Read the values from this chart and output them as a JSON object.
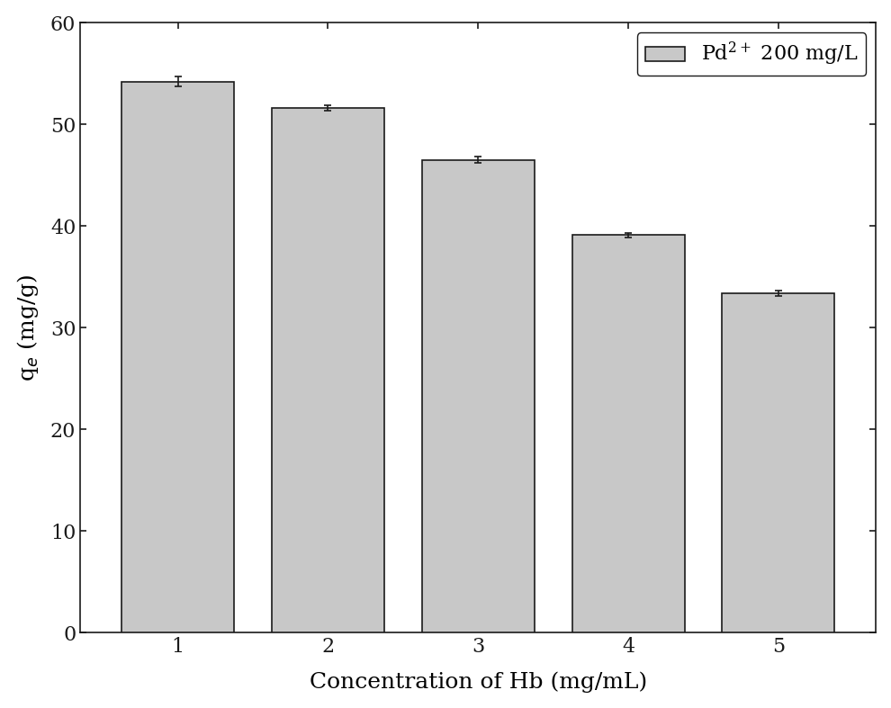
{
  "categories": [
    1,
    2,
    3,
    4,
    5
  ],
  "values": [
    54.2,
    51.6,
    46.5,
    39.1,
    33.4
  ],
  "errors": [
    0.5,
    0.3,
    0.3,
    0.25,
    0.25
  ],
  "bar_color": "#c8c8c8",
  "bar_edgecolor": "#1a1a1a",
  "xlabel": "Concentration of Hb (mg/mL)",
  "ylabel": "q$_e$ (mg/g)",
  "ylim": [
    0,
    60
  ],
  "yticks": [
    0,
    10,
    20,
    30,
    40,
    50,
    60
  ],
  "xlim": [
    0.35,
    5.65
  ],
  "legend_label": "Pd$^{2+}$ 200 mg/L",
  "bar_width": 0.75,
  "background_color": "#ffffff",
  "label_fontsize": 18,
  "tick_fontsize": 16,
  "legend_fontsize": 16,
  "errorbar_color": "#1a1a1a",
  "errorbar_capsize": 3,
  "errorbar_linewidth": 1.2
}
